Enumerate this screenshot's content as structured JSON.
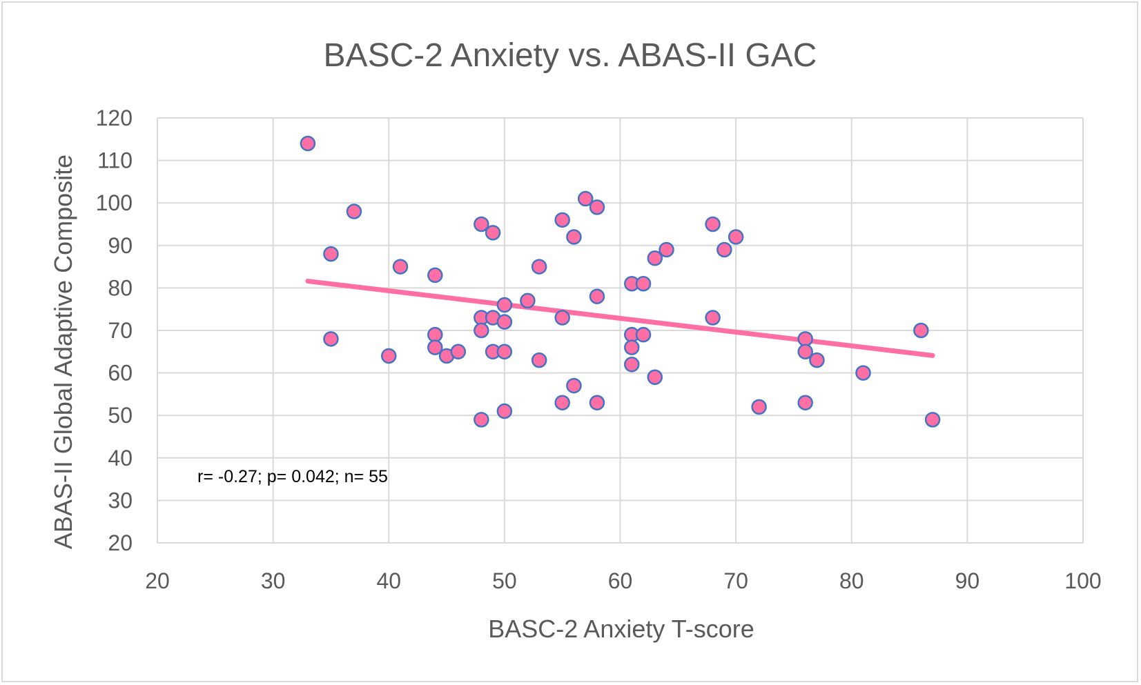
{
  "chart_data": {
    "type": "scatter",
    "title": "BASC-2 Anxiety vs. ABAS-II GAC",
    "xlabel": "BASC-2 Anxiety T-score",
    "ylabel": "ABAS-II Global Adaptive Composite",
    "xlim": [
      20,
      100
    ],
    "ylim": [
      20,
      120
    ],
    "xticks": [
      20,
      30,
      40,
      50,
      60,
      70,
      80,
      90,
      100
    ],
    "yticks": [
      20,
      30,
      40,
      50,
      60,
      70,
      80,
      90,
      100,
      110,
      120
    ],
    "grid": true,
    "legend": "none",
    "annotation": "r= -0.27; p= 0.042; n= 55",
    "colors": {
      "marker_fill": "#ff6fa3",
      "marker_edge": "#4472c4",
      "trendline": "#ff6fa3",
      "grid": "#d9d9d9",
      "text": "#595959"
    },
    "trendline": {
      "x": [
        33,
        87
      ],
      "y": [
        81.6,
        64.1
      ]
    },
    "points": [
      [
        33,
        114
      ],
      [
        35,
        88
      ],
      [
        35,
        68
      ],
      [
        37,
        98
      ],
      [
        40,
        64
      ],
      [
        41,
        85
      ],
      [
        44,
        83
      ],
      [
        44,
        69
      ],
      [
        44,
        66
      ],
      [
        45,
        64
      ],
      [
        46,
        65
      ],
      [
        48,
        95
      ],
      [
        48,
        73
      ],
      [
        48,
        70
      ],
      [
        48,
        49
      ],
      [
        49,
        93
      ],
      [
        49,
        73
      ],
      [
        49,
        65
      ],
      [
        50,
        76
      ],
      [
        50,
        72
      ],
      [
        50,
        65
      ],
      [
        50,
        51
      ],
      [
        52,
        77
      ],
      [
        53,
        85
      ],
      [
        53,
        63
      ],
      [
        55,
        96
      ],
      [
        55,
        73
      ],
      [
        55,
        53
      ],
      [
        56,
        92
      ],
      [
        56,
        57
      ],
      [
        57,
        101
      ],
      [
        58,
        99
      ],
      [
        58,
        78
      ],
      [
        58,
        53
      ],
      [
        61,
        81
      ],
      [
        61,
        69
      ],
      [
        61,
        66
      ],
      [
        61,
        62
      ],
      [
        62,
        81
      ],
      [
        62,
        69
      ],
      [
        63,
        87
      ],
      [
        63,
        59
      ],
      [
        64,
        89
      ],
      [
        68,
        95
      ],
      [
        68,
        73
      ],
      [
        69,
        89
      ],
      [
        70,
        92
      ],
      [
        72,
        52
      ],
      [
        76,
        68
      ],
      [
        76,
        65
      ],
      [
        76,
        53
      ],
      [
        77,
        63
      ],
      [
        81,
        60
      ],
      [
        86,
        70
      ],
      [
        87,
        49
      ]
    ]
  }
}
